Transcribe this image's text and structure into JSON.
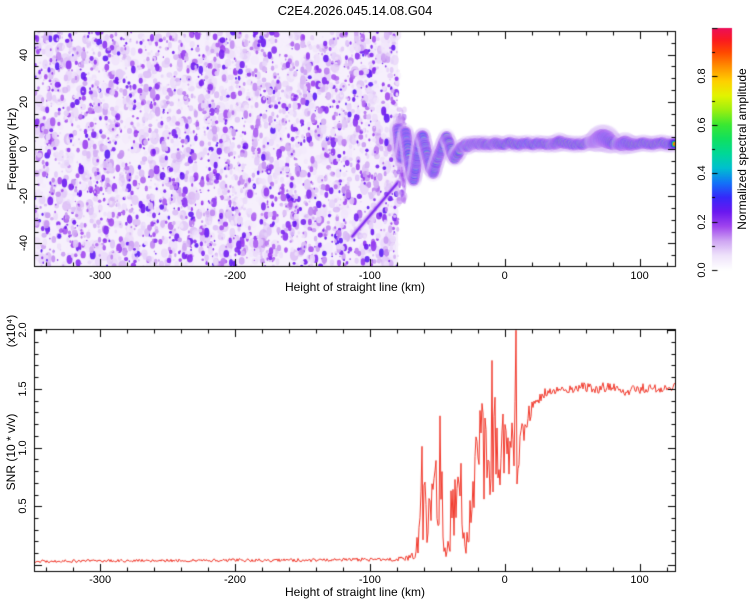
{
  "title": "C2E4.2026.045.14.08.G04",
  "chart_data": [
    {
      "type": "heatmap",
      "name": "frequency-spectrogram",
      "xlabel": "Height of straight line (km)",
      "ylabel": "Frequency (Hz)",
      "x_range": [
        -349,
        127
      ],
      "y_range": [
        -50,
        50
      ],
      "x_ticks": {
        "values": [
          -300,
          -200,
          -100,
          0,
          100
        ],
        "labels": [
          "-300",
          "-200",
          "-100",
          "0",
          "100"
        ]
      },
      "x_minor_step": 20,
      "y_ticks": {
        "values": [
          40,
          20,
          0,
          -20,
          -40
        ],
        "labels": [
          "40",
          "20",
          "0",
          "-20",
          "-40"
        ]
      },
      "y_minor_step": 5,
      "grid": false,
      "colorbar": {
        "label": "Normalized spectral amplitude",
        "range": [
          0,
          1
        ],
        "ticks": {
          "values": [
            0,
            0.2,
            0.4,
            0.6,
            0.8
          ],
          "labels": [
            "0.0",
            "0.2",
            "0.4",
            "0.6",
            "0.8"
          ]
        },
        "minor_step": 0.1,
        "stops": [
          [
            0.0,
            "#ffffff"
          ],
          [
            0.06,
            "#efe3fb"
          ],
          [
            0.12,
            "#cfa6f3"
          ],
          [
            0.18,
            "#a045ee"
          ],
          [
            0.24,
            "#6a18f0"
          ],
          [
            0.3,
            "#3628fa"
          ],
          [
            0.36,
            "#1273f8"
          ],
          [
            0.42,
            "#00bfd0"
          ],
          [
            0.48,
            "#00d898"
          ],
          [
            0.54,
            "#10e060"
          ],
          [
            0.6,
            "#3ae832"
          ],
          [
            0.66,
            "#9bef10"
          ],
          [
            0.72,
            "#e2f400"
          ],
          [
            0.78,
            "#ffd000"
          ],
          [
            0.84,
            "#ff9000"
          ],
          [
            0.9,
            "#ff4800"
          ],
          [
            0.95,
            "#fb1a20"
          ],
          [
            1.0,
            "#ec0f5a"
          ]
        ]
      },
      "noise_region": {
        "x_start_km": -349,
        "x_end_km": -79,
        "amplitude_range": [
          0.0,
          0.28
        ]
      },
      "streak": [
        [
          -113,
          -37
        ],
        [
          -79,
          -14
        ]
      ],
      "onset_spread": {
        "km": [
          -79,
          -74
        ],
        "hz": [
          -22,
          18
        ]
      },
      "signal_trace": [
        [
          -79,
          9,
          0.5,
          1.1
        ],
        [
          -78,
          1,
          0.6,
          1
        ],
        [
          -76.5,
          -4,
          0.55,
          1
        ],
        [
          -75,
          2,
          0.65,
          1
        ],
        [
          -73.5,
          7,
          0.5,
          1
        ],
        [
          -72,
          1,
          0.7,
          1
        ],
        [
          -70.5,
          -6,
          0.6,
          1
        ],
        [
          -69,
          -11,
          0.55,
          1
        ],
        [
          -67.5,
          -13,
          0.6,
          1
        ],
        [
          -66,
          -8,
          0.65,
          1
        ],
        [
          -64.5,
          -2,
          0.7,
          1
        ],
        [
          -63,
          3,
          0.6,
          1
        ],
        [
          -61,
          6,
          0.55,
          1
        ],
        [
          -59,
          1,
          0.75,
          1
        ],
        [
          -57,
          -4,
          0.7,
          1
        ],
        [
          -55,
          -8,
          0.6,
          1
        ],
        [
          -53,
          -10,
          0.68,
          1
        ],
        [
          -51,
          -6,
          0.92,
          1
        ],
        [
          -49,
          -3,
          0.8,
          1
        ],
        [
          -47,
          0,
          0.7,
          1
        ],
        [
          -45,
          3,
          0.75,
          1
        ],
        [
          -43,
          5,
          0.85,
          1
        ],
        [
          -41,
          2,
          0.92,
          1
        ],
        [
          -39,
          -2,
          0.75,
          1
        ],
        [
          -37,
          -4,
          0.8,
          1
        ],
        [
          -35,
          -2,
          0.85,
          1.1
        ],
        [
          -33,
          0,
          0.8,
          1
        ],
        [
          -31,
          1,
          0.9,
          1
        ],
        [
          -29,
          2,
          0.85,
          1
        ],
        [
          -27,
          1,
          0.92,
          1
        ],
        [
          -25,
          2,
          1,
          1
        ],
        [
          -22,
          2.5,
          0.95,
          1
        ],
        [
          -19,
          2,
          1,
          1
        ],
        [
          -16,
          2.5,
          1,
          1
        ],
        [
          -13,
          2,
          0.9,
          1
        ],
        [
          -10,
          2,
          1,
          1
        ],
        [
          -7,
          2.5,
          0.95,
          1
        ],
        [
          -4,
          2,
          1,
          1
        ],
        [
          0,
          2,
          0.85,
          1
        ],
        [
          4,
          2.5,
          1,
          1
        ],
        [
          8,
          2,
          1,
          1
        ],
        [
          12,
          2,
          0.8,
          1
        ],
        [
          16,
          2.5,
          0.65,
          1
        ],
        [
          20,
          2,
          0.9,
          1
        ],
        [
          25,
          2.5,
          0.72,
          1
        ],
        [
          30,
          2,
          1,
          1
        ],
        [
          35,
          2,
          1,
          1
        ],
        [
          40,
          3,
          0.95,
          1.15
        ],
        [
          45,
          2.5,
          1,
          1
        ],
        [
          50,
          2,
          0.95,
          1
        ],
        [
          55,
          2,
          0.9,
          1
        ],
        [
          60,
          2.5,
          0.95,
          1
        ],
        [
          65,
          3,
          0.8,
          1.1
        ],
        [
          70,
          4.5,
          0.7,
          1.55
        ],
        [
          75,
          4.5,
          0.75,
          1.65
        ],
        [
          80,
          2.5,
          0.95,
          1.25
        ],
        [
          84,
          2,
          0.7,
          1
        ],
        [
          88,
          2.5,
          0.65,
          1.35
        ],
        [
          92,
          2,
          0.9,
          1.2
        ],
        [
          97,
          2,
          1,
          1
        ],
        [
          103,
          2.5,
          0.95,
          1
        ],
        [
          110,
          2,
          1,
          1
        ],
        [
          117,
          2.5,
          0.95,
          1
        ],
        [
          123,
          2,
          0.9,
          1
        ],
        [
          127,
          2,
          0.9,
          1
        ]
      ]
    },
    {
      "type": "line",
      "name": "snr-profile",
      "xlabel": "Height of straight line (km)",
      "ylabel": "SNR (10 * v/v)",
      "scale_label": "(x10⁴)",
      "color": "#f23b2e",
      "x_range": [
        -349,
        127
      ],
      "y_range": [
        -0.06,
        2.01
      ],
      "x_ticks": {
        "values": [
          -300,
          -200,
          -100,
          0,
          100
        ],
        "labels": [
          "-300",
          "-200",
          "-100",
          "0",
          "100"
        ]
      },
      "x_minor_step": 20,
      "y_ticks": {
        "values": [
          0.5,
          1.0,
          1.5,
          2.0
        ],
        "labels": [
          "0.5",
          "1.0",
          "1.5",
          "2.0"
        ]
      },
      "y_minor_step": 0.1,
      "anchors": [
        [
          -349,
          0.03,
          0.012
        ],
        [
          -300,
          0.035,
          0.012
        ],
        [
          -250,
          0.038,
          0.013
        ],
        [
          -200,
          0.04,
          0.013
        ],
        [
          -150,
          0.04,
          0.015
        ],
        [
          -110,
          0.045,
          0.015
        ],
        [
          -90,
          0.048,
          0.018
        ],
        [
          -80,
          0.05,
          0.02
        ],
        [
          -72,
          0.06,
          0.025
        ],
        [
          -67,
          0.09,
          0.045
        ],
        [
          -64,
          0.22,
          0.13
        ],
        [
          -61,
          0.4,
          0.25
        ],
        [
          -58,
          0.48,
          0.3
        ],
        [
          -56,
          0.38,
          0.22
        ],
        [
          -53,
          0.5,
          0.3
        ],
        [
          -50,
          0.62,
          0.33
        ],
        [
          -48,
          0.5,
          0.28
        ],
        [
          -46,
          0.28,
          0.16
        ],
        [
          -44,
          0.17,
          0.1
        ],
        [
          -42,
          0.14,
          0.08
        ],
        [
          -40,
          0.22,
          0.14
        ],
        [
          -38,
          0.45,
          0.28
        ],
        [
          -36,
          0.58,
          0.3
        ],
        [
          -34,
          0.5,
          0.28
        ],
        [
          -32,
          0.3,
          0.18
        ],
        [
          -30,
          0.18,
          0.1
        ],
        [
          -28,
          0.22,
          0.12
        ],
        [
          -26,
          0.35,
          0.2
        ],
        [
          -24,
          0.55,
          0.33
        ],
        [
          -22,
          0.7,
          0.4
        ],
        [
          -20,
          0.85,
          0.42
        ],
        [
          -18,
          0.95,
          0.45
        ],
        [
          -16,
          1.0,
          0.45
        ],
        [
          -14,
          0.85,
          0.4
        ],
        [
          -12,
          0.9,
          0.4
        ],
        [
          -10,
          0.8,
          0.42
        ],
        [
          -8,
          0.95,
          0.35
        ],
        [
          -6,
          0.85,
          0.4
        ],
        [
          -4,
          0.95,
          0.32
        ],
        [
          -2,
          1.0,
          0.3
        ],
        [
          0,
          0.95,
          0.32
        ],
        [
          2,
          1.0,
          0.28
        ],
        [
          4,
          1.05,
          0.3
        ],
        [
          6,
          1.0,
          0.3
        ],
        [
          7.4,
          0.9,
          0.2
        ],
        [
          8,
          1.95,
          0.05
        ],
        [
          8.5,
          2.0,
          0.03
        ],
        [
          9,
          0.6,
          0.15
        ],
        [
          9.5,
          1.6,
          0.12
        ],
        [
          10,
          0.6,
          0.15
        ],
        [
          10.8,
          1.0,
          0.2
        ],
        [
          12,
          1.05,
          0.18
        ],
        [
          14,
          1.12,
          0.12
        ],
        [
          16,
          1.2,
          0.1
        ],
        [
          18,
          1.28,
          0.08
        ],
        [
          20,
          1.33,
          0.07
        ],
        [
          23,
          1.38,
          0.06
        ],
        [
          26,
          1.43,
          0.05
        ],
        [
          30,
          1.46,
          0.045
        ],
        [
          35,
          1.48,
          0.04
        ],
        [
          40,
          1.5,
          0.04
        ],
        [
          45,
          1.5,
          0.04
        ],
        [
          50,
          1.5,
          0.04
        ],
        [
          55,
          1.51,
          0.04
        ],
        [
          60,
          1.52,
          0.04
        ],
        [
          65,
          1.5,
          0.04
        ],
        [
          70,
          1.5,
          0.04
        ],
        [
          75,
          1.52,
          0.045
        ],
        [
          80,
          1.52,
          0.04
        ],
        [
          85,
          1.5,
          0.04
        ],
        [
          90,
          1.47,
          0.04
        ],
        [
          95,
          1.49,
          0.04
        ],
        [
          100,
          1.5,
          0.04
        ],
        [
          105,
          1.51,
          0.04
        ],
        [
          110,
          1.52,
          0.04
        ],
        [
          115,
          1.5,
          0.04
        ],
        [
          120,
          1.5,
          0.04
        ],
        [
          124,
          1.52,
          0.04
        ],
        [
          127,
          1.51,
          0.04
        ]
      ]
    }
  ]
}
